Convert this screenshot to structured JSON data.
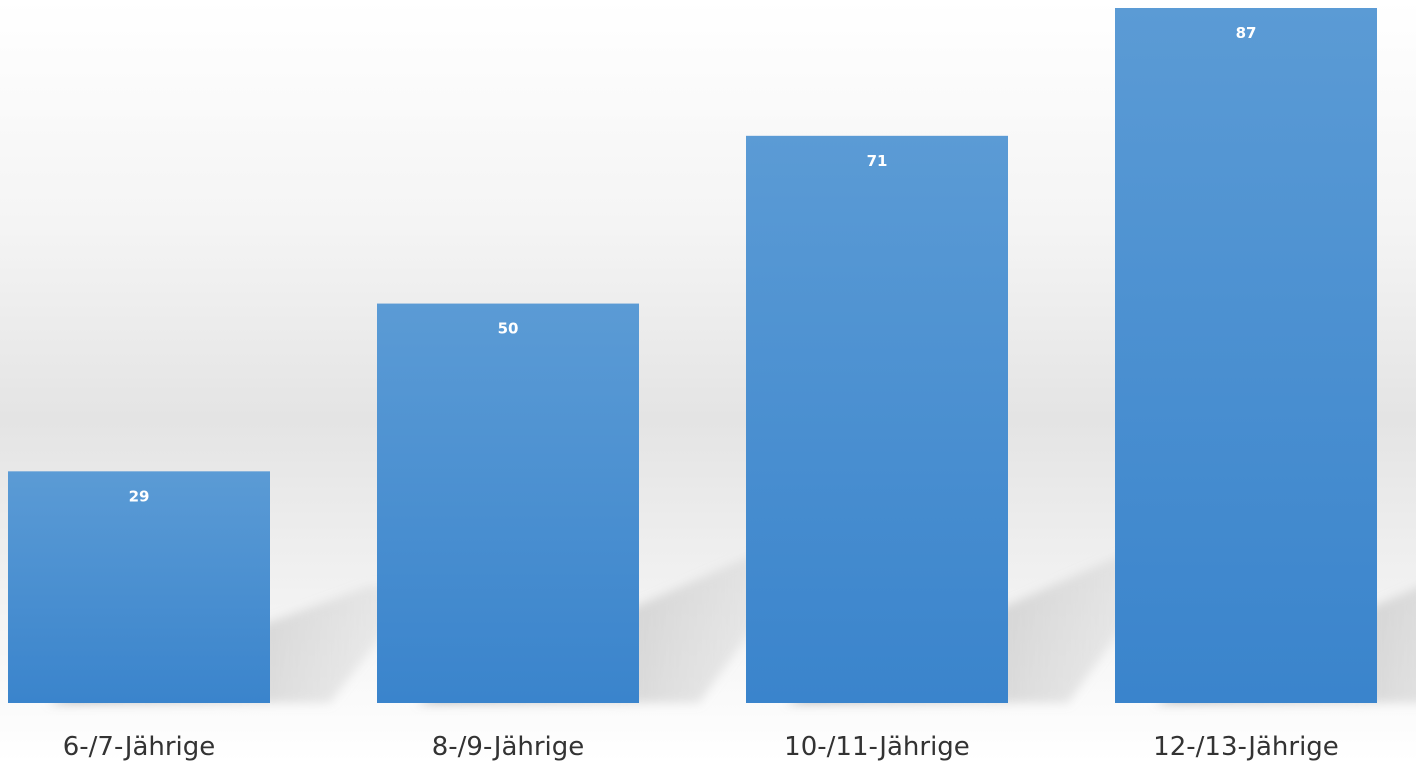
{
  "chart_data": {
    "type": "bar",
    "categories": [
      "6-/7-Jährige",
      "8-/9-Jährige",
      "10-/11-Jährige",
      "12-/13-Jährige"
    ],
    "values": [
      29,
      50,
      71,
      87
    ],
    "data_labels": [
      "29",
      "50",
      "71",
      "87"
    ],
    "title": "",
    "xlabel": "",
    "ylabel": "",
    "ylim": [
      0,
      87
    ],
    "grid": false,
    "legend": "none",
    "colors": {
      "bar_top": "#5b9bd5",
      "bar_bottom": "#3a84cc",
      "label_text": "#333333",
      "value_text": "#ffffff"
    }
  }
}
